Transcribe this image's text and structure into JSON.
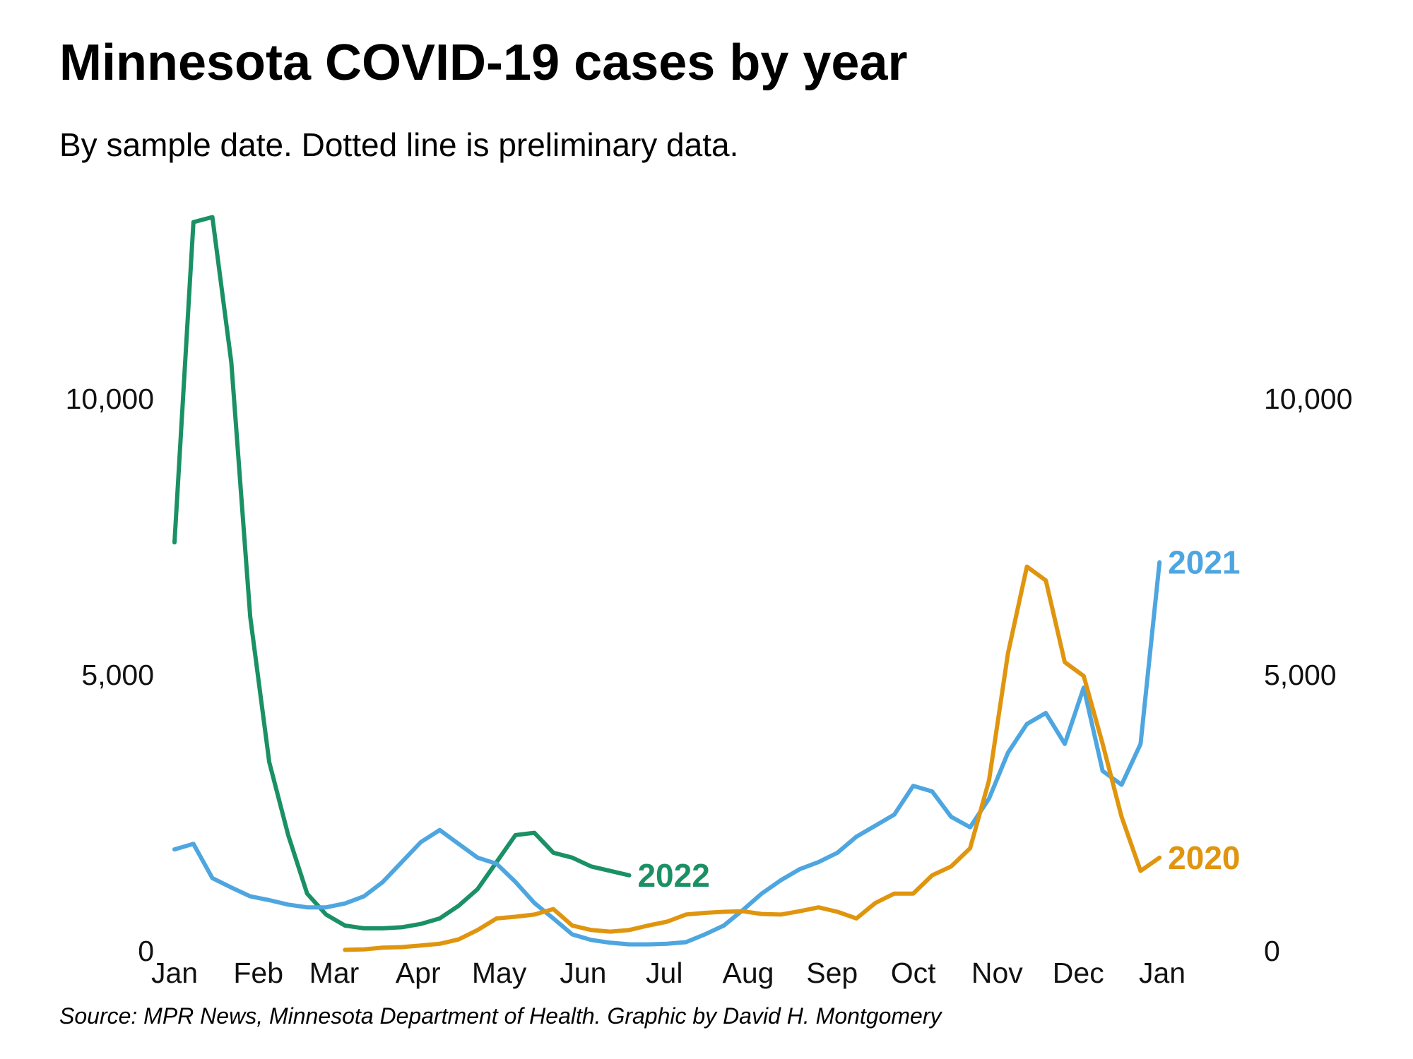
{
  "chart_data": {
    "type": "line",
    "title": "Minnesota COVID-19 cases by year",
    "subtitle": "By sample date. Dotted line is preliminary data.",
    "source": "Source: MPR News, Minnesota Department of Health. Graphic by David H. Montgomery",
    "x": [
      0,
      7,
      14,
      21,
      28,
      35,
      42,
      49,
      56,
      63,
      70,
      77,
      84,
      91,
      98,
      105,
      112,
      119,
      126,
      133,
      140,
      147,
      154,
      161,
      168,
      175,
      182,
      189,
      196,
      203,
      210,
      217,
      224,
      231,
      238,
      245,
      252,
      259,
      266,
      273,
      280,
      287,
      294,
      301,
      308,
      315,
      322,
      329,
      336,
      343,
      350,
      357,
      364
    ],
    "xlim": [
      0,
      365
    ],
    "xticks": [
      {
        "value": 0,
        "label": "Jan"
      },
      {
        "value": 31,
        "label": "Feb"
      },
      {
        "value": 59,
        "label": "Mar"
      },
      {
        "value": 90,
        "label": "Apr"
      },
      {
        "value": 120,
        "label": "May"
      },
      {
        "value": 151,
        "label": "Jun"
      },
      {
        "value": 181,
        "label": "Jul"
      },
      {
        "value": 212,
        "label": "Aug"
      },
      {
        "value": 243,
        "label": "Sep"
      },
      {
        "value": 273,
        "label": "Oct"
      },
      {
        "value": 304,
        "label": "Nov"
      },
      {
        "value": 334,
        "label": "Dec"
      },
      {
        "value": 365,
        "label": "Jan"
      }
    ],
    "ylim": [
      0,
      14000
    ],
    "yticks": [
      0,
      {
        "value": 5000,
        "label": "5,000"
      },
      {
        "value": 10000,
        "label": "10,000"
      }
    ],
    "y2lim": [
      0,
      14000
    ],
    "y2ticks": [
      0,
      {
        "value": 5000,
        "label": "5,000"
      },
      {
        "value": 10000,
        "label": "10,000"
      }
    ],
    "series": [
      {
        "name": "2022",
        "color": "#1a9165",
        "values": [
          7400,
          13200,
          13290,
          10660,
          6050,
          3420,
          2100,
          1040,
          660,
          460,
          410,
          410,
          430,
          490,
          590,
          820,
          1120,
          1610,
          2100,
          2140,
          1780,
          1690,
          1530,
          1450,
          1370,
          null,
          null,
          null,
          null,
          null,
          null,
          null,
          null,
          null,
          null,
          null,
          null,
          null,
          null,
          null,
          null,
          null,
          null,
          null,
          null,
          null,
          null,
          null,
          null,
          null,
          null,
          null,
          null
        ]
      },
      {
        "name": "2021",
        "color": "#4ea6e0",
        "values": [
          1840,
          1940,
          1320,
          1150,
          990,
          920,
          840,
          790,
          790,
          860,
          990,
          1250,
          1610,
          1970,
          2190,
          1940,
          1690,
          1580,
          1250,
          870,
          590,
          300,
          200,
          150,
          120,
          120,
          130,
          160,
          300,
          460,
          740,
          1040,
          1280,
          1480,
          1610,
          1780,
          2070,
          2270,
          2470,
          2990,
          2890,
          2430,
          2240,
          2760,
          3590,
          4110,
          4310,
          3750,
          4770,
          3260,
          3010,
          3750,
          7040
        ]
      },
      {
        "name": "2020",
        "color": "#e0950f",
        "values": [
          null,
          null,
          null,
          null,
          null,
          null,
          null,
          null,
          null,
          20,
          30,
          60,
          70,
          100,
          130,
          210,
          380,
          590,
          620,
          660,
          760,
          460,
          380,
          350,
          380,
          460,
          530,
          660,
          690,
          710,
          720,
          670,
          660,
          720,
          790,
          710,
          590,
          870,
          1040,
          1040,
          1370,
          1530,
          1860,
          3090,
          5390,
          6960,
          6710,
          5230,
          4980,
          3750,
          2430,
          1450,
          1690
        ]
      }
    ]
  }
}
